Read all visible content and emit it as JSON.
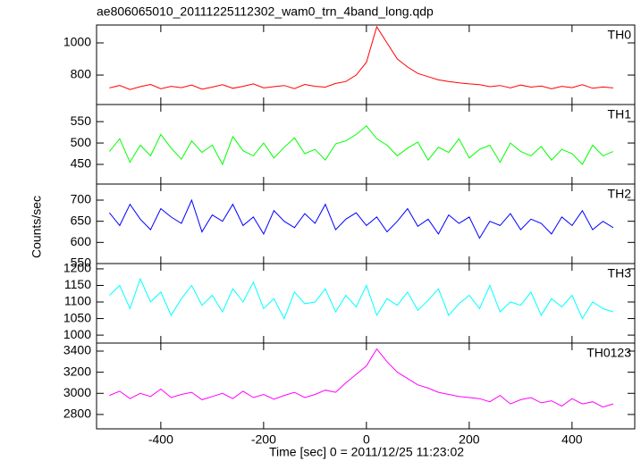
{
  "chart_data": [
    {
      "type": "line",
      "title": "ae806065010_20111225112302_wam0_trn_4band_long.qdp",
      "y_label": "Counts/sec",
      "x": [
        -500,
        -480,
        -460,
        -440,
        -420,
        -400,
        -380,
        -360,
        -340,
        -320,
        -300,
        -280,
        -260,
        -240,
        -220,
        -200,
        -180,
        -160,
        -140,
        -120,
        -100,
        -80,
        -60,
        -40,
        -20,
        0,
        20,
        40,
        60,
        80,
        100,
        120,
        140,
        160,
        180,
        200,
        220,
        240,
        260,
        280,
        300,
        320,
        340,
        360,
        380,
        400,
        420,
        440,
        460,
        480
      ],
      "xlim": [
        -525,
        522
      ],
      "ylim": [
        617,
        1111
      ],
      "yticks": [
        800,
        1000
      ],
      "series": [
        {
          "name": "TH0",
          "color": "#ff0000",
          "values": [
            720,
            735,
            710,
            728,
            742,
            715,
            730,
            722,
            738,
            712,
            725,
            740,
            718,
            730,
            745,
            720,
            728,
            735,
            716,
            742,
            730,
            725,
            748,
            760,
            800,
            880,
            1100,
            1000,
            900,
            850,
            810,
            790,
            770,
            760,
            752,
            745,
            740,
            728,
            735,
            720,
            738,
            725,
            732,
            715,
            730,
            722,
            740,
            718,
            726,
            720
          ]
        }
      ]
    },
    {
      "type": "line",
      "x": [
        -500,
        -480,
        -460,
        -440,
        -420,
        -400,
        -380,
        -360,
        -340,
        -320,
        -300,
        -280,
        -260,
        -240,
        -220,
        -200,
        -180,
        -160,
        -140,
        -120,
        -100,
        -80,
        -60,
        -40,
        -20,
        0,
        20,
        40,
        60,
        80,
        100,
        120,
        140,
        160,
        180,
        200,
        220,
        240,
        260,
        280,
        300,
        320,
        340,
        360,
        380,
        400,
        420,
        440,
        460,
        480
      ],
      "xlim": [
        -525,
        522
      ],
      "ylim": [
        404,
        590
      ],
      "yticks": [
        450,
        500,
        550
      ],
      "series": [
        {
          "name": "TH1",
          "color": "#00ff00",
          "values": [
            480,
            510,
            455,
            495,
            470,
            520,
            488,
            462,
            505,
            478,
            495,
            450,
            515,
            482,
            470,
            500,
            465,
            490,
            512,
            475,
            485,
            460,
            498,
            505,
            520,
            540,
            510,
            495,
            470,
            488,
            502,
            460,
            490,
            478,
            510,
            465,
            485,
            495,
            455,
            500,
            480,
            470,
            492,
            460,
            485,
            475,
            450,
            495,
            470,
            480
          ]
        }
      ]
    },
    {
      "type": "line",
      "x": [
        -500,
        -480,
        -460,
        -440,
        -420,
        -400,
        -380,
        -360,
        -340,
        -320,
        -300,
        -280,
        -260,
        -240,
        -220,
        -200,
        -180,
        -160,
        -140,
        -120,
        -100,
        -80,
        -60,
        -40,
        -20,
        0,
        20,
        40,
        60,
        80,
        100,
        120,
        140,
        160,
        180,
        200,
        220,
        240,
        260,
        280,
        300,
        320,
        340,
        360,
        380,
        400,
        420,
        440,
        460,
        480
      ],
      "xlim": [
        -525,
        522
      ],
      "ylim": [
        550,
        738
      ],
      "yticks": [
        550,
        600,
        650,
        700
      ],
      "series": [
        {
          "name": "TH2",
          "color": "#0000ff",
          "values": [
            670,
            640,
            690,
            655,
            630,
            680,
            660,
            645,
            700,
            625,
            665,
            650,
            690,
            640,
            660,
            620,
            675,
            650,
            635,
            668,
            645,
            690,
            630,
            655,
            670,
            640,
            660,
            625,
            650,
            680,
            638,
            655,
            620,
            665,
            645,
            660,
            610,
            650,
            640,
            668,
            630,
            655,
            645,
            620,
            660,
            640,
            675,
            630,
            650,
            635
          ]
        }
      ]
    },
    {
      "type": "line",
      "x": [
        -500,
        -480,
        -460,
        -440,
        -420,
        -400,
        -380,
        -360,
        -340,
        -320,
        -300,
        -280,
        -260,
        -240,
        -220,
        -200,
        -180,
        -160,
        -140,
        -120,
        -100,
        -80,
        -60,
        -40,
        -20,
        0,
        20,
        40,
        60,
        80,
        100,
        120,
        140,
        160,
        180,
        200,
        220,
        240,
        260,
        280,
        300,
        320,
        340,
        360,
        380,
        400,
        420,
        440,
        460,
        480
      ],
      "xlim": [
        -525,
        522
      ],
      "ylim": [
        976,
        1216
      ],
      "yticks": [
        1000,
        1050,
        1100,
        1150,
        1200
      ],
      "series": [
        {
          "name": "TH3",
          "color": "#00ffff",
          "values": [
            1120,
            1150,
            1080,
            1170,
            1100,
            1130,
            1060,
            1110,
            1150,
            1090,
            1120,
            1070,
            1140,
            1100,
            1160,
            1080,
            1110,
            1050,
            1130,
            1095,
            1100,
            1140,
            1070,
            1120,
            1085,
            1150,
            1060,
            1110,
            1090,
            1130,
            1075,
            1105,
            1140,
            1060,
            1095,
            1120,
            1080,
            1150,
            1070,
            1100,
            1090,
            1130,
            1060,
            1110,
            1085,
            1120,
            1050,
            1100,
            1080,
            1070
          ]
        }
      ]
    },
    {
      "type": "line",
      "x_label": "Time [sec] 0 = 2011/12/25 11:23:02",
      "x": [
        -500,
        -480,
        -460,
        -440,
        -420,
        -400,
        -380,
        -360,
        -340,
        -320,
        -300,
        -280,
        -260,
        -240,
        -220,
        -200,
        -180,
        -160,
        -140,
        -120,
        -100,
        -80,
        -60,
        -40,
        -20,
        0,
        20,
        40,
        60,
        80,
        100,
        120,
        140,
        160,
        180,
        200,
        220,
        240,
        260,
        280,
        300,
        320,
        340,
        360,
        380,
        400,
        420,
        440,
        460,
        480
      ],
      "xlim": [
        -525,
        522
      ],
      "xticks": [
        -400,
        -200,
        0,
        200,
        400
      ],
      "ylim": [
        2664,
        3476
      ],
      "yticks": [
        2800,
        3000,
        3200,
        3400
      ],
      "series": [
        {
          "name": "TH0123",
          "color": "#ff00ff",
          "values": [
            2980,
            3020,
            2950,
            3000,
            2970,
            3040,
            2960,
            2990,
            3010,
            2940,
            2970,
            3000,
            2950,
            3020,
            2960,
            2990,
            2945,
            2980,
            3010,
            2960,
            2990,
            3030,
            3010,
            3100,
            3180,
            3260,
            3420,
            3300,
            3200,
            3140,
            3080,
            3050,
            3010,
            2990,
            2970,
            2960,
            2950,
            2920,
            2980,
            2900,
            2940,
            2960,
            2910,
            2930,
            2880,
            2950,
            2900,
            2920,
            2870,
            2900
          ]
        }
      ]
    }
  ]
}
